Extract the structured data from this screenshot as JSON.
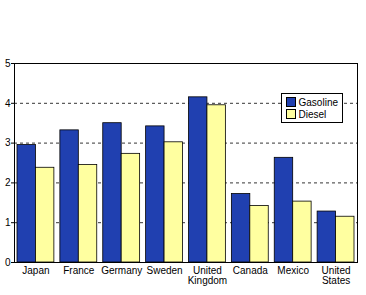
{
  "chart_data": {
    "type": "bar",
    "categories": [
      "Japan",
      "France",
      "Germany",
      "Sweden",
      "United Kingdom",
      "Canada",
      "Mexico",
      "United States"
    ],
    "series": [
      {
        "name": "Gasoline",
        "color": "#2040b0",
        "values": [
          2.95,
          3.32,
          3.5,
          3.42,
          4.15,
          1.72,
          2.63,
          1.28
        ]
      },
      {
        "name": "Diesel",
        "color": "#ffffa0",
        "values": [
          2.38,
          2.45,
          2.73,
          3.02,
          3.95,
          1.42,
          1.53,
          1.15
        ]
      }
    ],
    "ylim": [
      0,
      5
    ],
    "yticks": [
      0,
      1,
      2,
      3,
      4,
      5
    ],
    "grid": true,
    "legend": "upper right"
  }
}
